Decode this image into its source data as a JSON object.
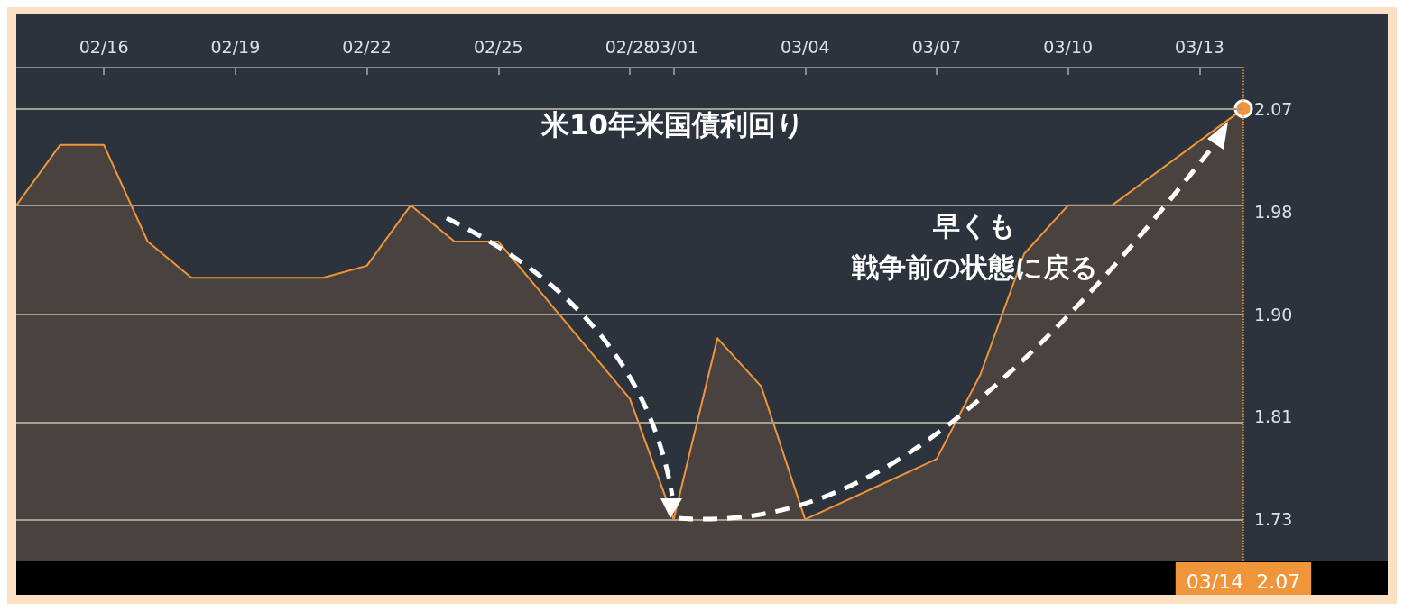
{
  "chart_data": {
    "type": "area",
    "title": "米10年米国債利回り",
    "x": [
      "--02-14",
      "--02-15",
      "--02-16",
      "--02-17",
      "--02-18",
      "--02-19",
      "--02-20",
      "--02-21",
      "--02-22",
      "--02-23",
      "--02-24",
      "--02-25",
      "--02-28",
      "--03-01",
      "--03-02",
      "--03-03",
      "--03-04",
      "--03-07",
      "--03-08",
      "--03-09",
      "--03-10",
      "--03-11",
      "--03-14"
    ],
    "series": [
      {
        "color": "#f0953a",
        "values": [
          1.99,
          2.04,
          2.04,
          1.96,
          1.93,
          1.93,
          1.93,
          1.93,
          1.94,
          1.99,
          1.96,
          1.96,
          1.83,
          1.73,
          1.88,
          1.84,
          1.73,
          1.78,
          1.85,
          1.95,
          1.99,
          1.99,
          2.07
        ]
      }
    ],
    "xlim": [
      "--02-14",
      "--03-14"
    ],
    "xticks": [
      {
        "value": "--02-16",
        "label": "02/16"
      },
      {
        "value": "--02-19",
        "label": "02/19"
      },
      {
        "value": "--02-22",
        "label": "02/22"
      },
      {
        "value": "--02-25",
        "label": "02/25"
      },
      {
        "value": "--02-28",
        "label": "02/28"
      },
      {
        "value": "--03-01",
        "label": "03/01"
      },
      {
        "value": "--03-04",
        "label": "03/04"
      },
      {
        "value": "--03-07",
        "label": "03/07"
      },
      {
        "value": "--03-10",
        "label": "03/10"
      },
      {
        "value": "--03-13",
        "label": "03/13"
      }
    ],
    "ylim": [
      1.696,
      2.104
    ],
    "yticks": [
      {
        "value": 1.73,
        "label": "1.73"
      },
      {
        "value": 1.815,
        "label": "1.81"
      },
      {
        "value": 1.9,
        "label": "1.90"
      },
      {
        "value": 1.985,
        "label": "1.98"
      },
      {
        "value": 2.07,
        "label": "2.07"
      }
    ],
    "grid": "y",
    "ref_lines": [
      {
        "axis": "x",
        "value": "--03-14",
        "label": "03/14  2.07",
        "color": "#f0953a",
        "line_style": "dotted"
      }
    ],
    "annotations": [
      "早くも",
      "戦争前の状態に戻る"
    ]
  }
}
